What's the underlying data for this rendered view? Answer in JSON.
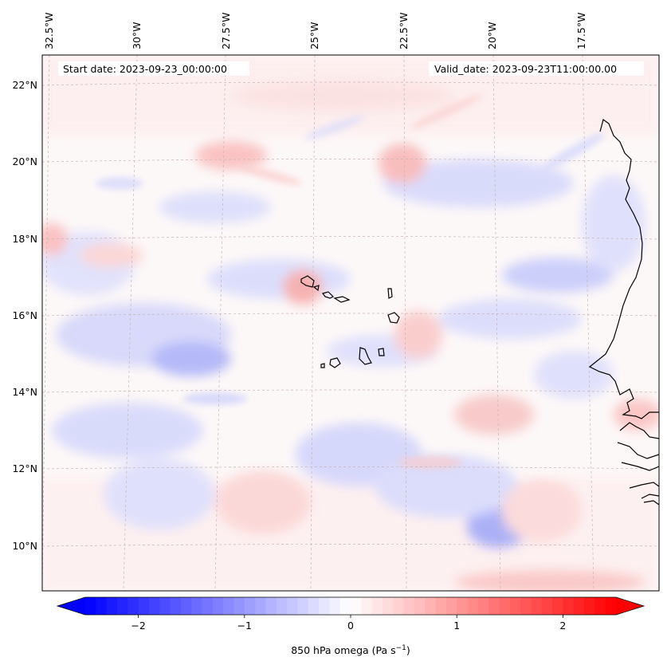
{
  "map": {
    "start_date_text": "Start date: 2023-09-23_00:00:00",
    "valid_date_text": "Valid_date: 2023-09-23T11:00:00.00",
    "longitude_labels": [
      "32.5°W",
      "30°W",
      "27.5°W",
      "25°W",
      "22.5°W",
      "20°W",
      "17.5°W"
    ],
    "latitude_labels": [
      "22°N",
      "20°N",
      "18°N",
      "16°N",
      "14°N",
      "12°N",
      "10°N"
    ],
    "field": "850 hPa omega",
    "coastline_color": "#000000",
    "gridline_color": "#c8b4b4"
  },
  "colorbar": {
    "label_prefix": "850 hPa omega (Pa s",
    "label_exp": "−1",
    "label_suffix": ")",
    "ticks": [
      {
        "value": -2,
        "label": "−2"
      },
      {
        "value": -1,
        "label": "−1"
      },
      {
        "value": 0,
        "label": "0"
      },
      {
        "value": 1,
        "label": "1"
      },
      {
        "value": 2,
        "label": "2"
      }
    ],
    "range": [
      -2.5,
      2.5
    ],
    "colormap": "bwr",
    "extend": "both",
    "negative_color": "#0000ff",
    "zero_color": "#ffffff",
    "positive_color": "#ff0000"
  }
}
